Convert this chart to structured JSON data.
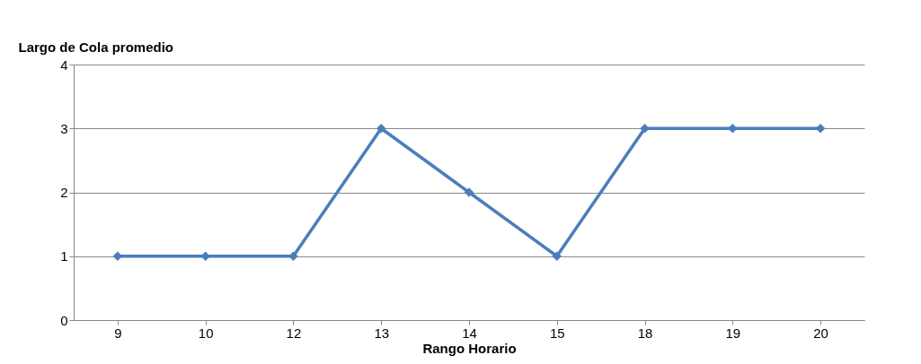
{
  "chart_data": {
    "type": "line",
    "xlabel": "Rango Horario",
    "ylabel": "Largo de Cola promedio",
    "categories": [
      "9",
      "10",
      "12",
      "13",
      "14",
      "15",
      "18",
      "19",
      "20"
    ],
    "series": [
      {
        "color": "#4a7ebb",
        "values": [
          1,
          1,
          1,
          3,
          2,
          1,
          3,
          3,
          3
        ]
      }
    ],
    "ylim": [
      0,
      4
    ],
    "yticks": [
      0,
      1,
      2,
      3,
      4
    ],
    "grid": "y",
    "marker": "diamond",
    "line_style": "solid"
  }
}
